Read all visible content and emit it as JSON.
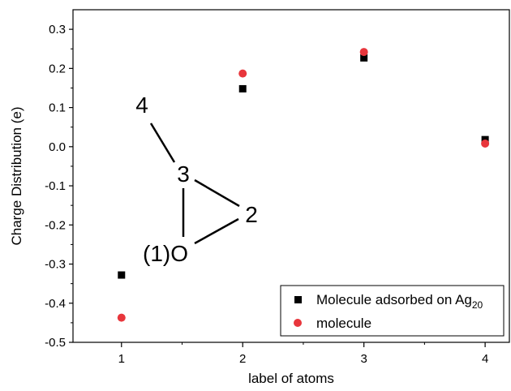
{
  "chart_data": {
    "type": "scatter",
    "xlabel": "label of atoms",
    "ylabel": "Charge Distribution (e)",
    "x_ticks": [
      "1",
      "2",
      "3",
      "4"
    ],
    "y_ticks": [
      "0.3",
      "0.2",
      "0.1",
      "0.0",
      "-0.1",
      "-0.2",
      "-0.3",
      "-0.4",
      "-0.5"
    ],
    "xlim": [
      0.6,
      4.2
    ],
    "ylim": [
      -0.5,
      0.35
    ],
    "grid": false,
    "legend_position": "bottom-right",
    "series": [
      {
        "name": "Molecule adsorbed on Ag",
        "name_subscript": "20",
        "marker": "square",
        "color": "#000000",
        "x": [
          1,
          2,
          3,
          4
        ],
        "y": [
          -0.328,
          0.148,
          0.227,
          0.018
        ]
      },
      {
        "name": "molecule",
        "marker": "circle",
        "color": "#e8363c",
        "x": [
          1,
          2,
          3,
          4
        ],
        "y": [
          -0.437,
          0.187,
          0.242,
          0.008
        ]
      }
    ],
    "inset_labels": [
      "4",
      "3",
      "2",
      "(1)O"
    ]
  }
}
